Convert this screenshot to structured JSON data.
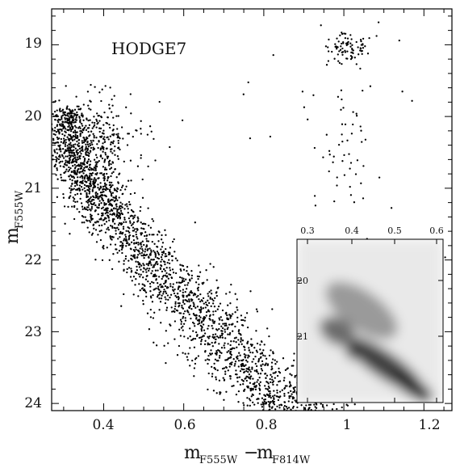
{
  "chart_data": {
    "type": "scatter",
    "title": "HODGE7",
    "xlabel": {
      "main": "m",
      "sub1": "F555W",
      "minus": "−",
      "sub2": "F814W"
    },
    "ylabel": {
      "main": "m",
      "sub": "F555W"
    },
    "xlim": [
      0.27,
      1.27
    ],
    "ylim": [
      24.1,
      18.5
    ],
    "y_inverted": true,
    "x_ticks": [
      "0.4",
      "0.6",
      "0.8",
      "1",
      "1.2"
    ],
    "y_ticks": [
      "19",
      "20",
      "21",
      "22",
      "23",
      "24"
    ],
    "main_sequence_ridge": [
      {
        "x": 0.31,
        "y": 20.5
      },
      {
        "x": 0.36,
        "y": 20.9
      },
      {
        "x": 0.42,
        "y": 21.4
      },
      {
        "x": 0.48,
        "y": 21.8
      },
      {
        "x": 0.55,
        "y": 22.2
      },
      {
        "x": 0.62,
        "y": 22.6
      },
      {
        "x": 0.68,
        "y": 23.0
      },
      {
        "x": 0.74,
        "y": 23.4
      },
      {
        "x": 0.8,
        "y": 23.75
      },
      {
        "x": 0.86,
        "y": 24.05
      }
    ],
    "red_clump": {
      "x": 1.01,
      "y": 19.05
    },
    "inset": {
      "type": "heatmap",
      "x_ticks": [
        "0.3",
        "0.4",
        "0.5",
        "0.6"
      ],
      "y_ticks": [
        "20",
        "21"
      ],
      "xlim": [
        0.26,
        0.63
      ],
      "ylim": [
        22.2,
        19.2
      ]
    }
  }
}
